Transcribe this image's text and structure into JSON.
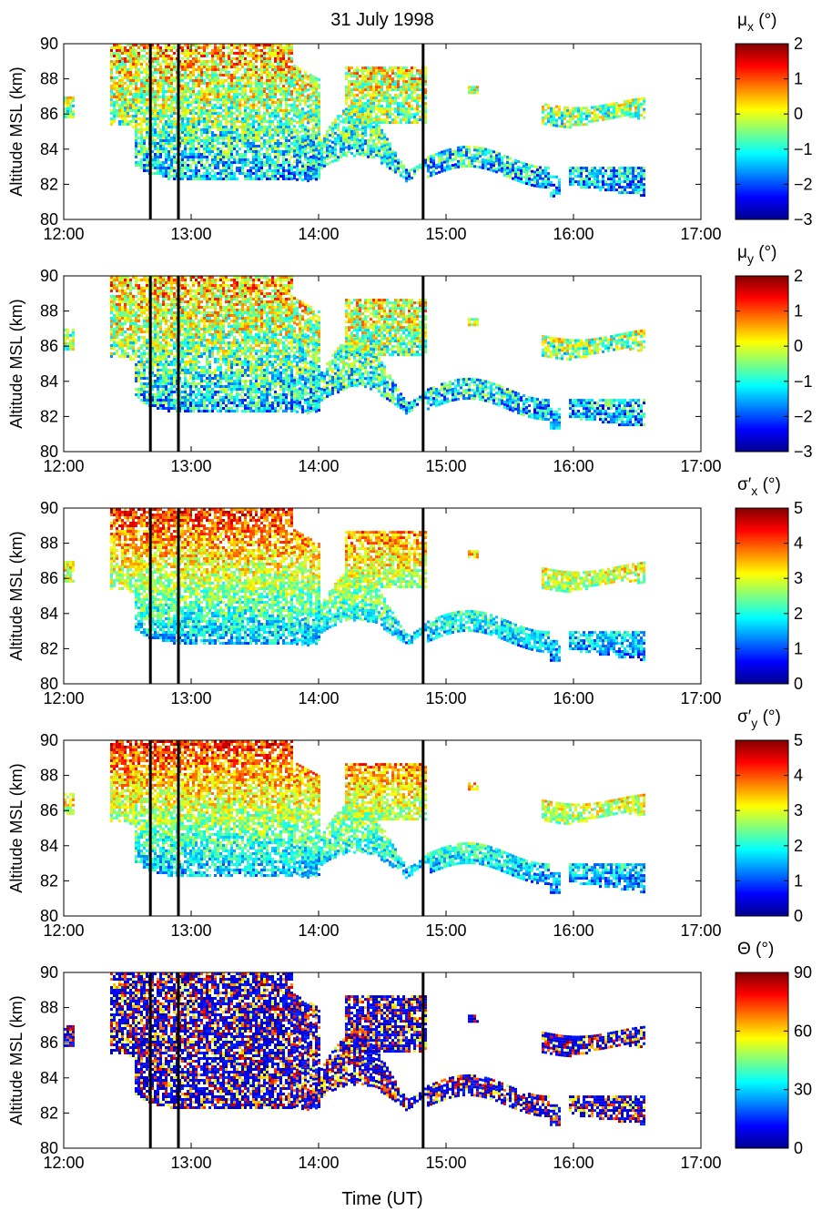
{
  "figure": {
    "title": "31 July 1998",
    "xlabel": "Time (UT)"
  },
  "chart_data": [
    {
      "type": "heatmap",
      "ylabel": "Altitude MSL (km)",
      "colorbar_label_main": "μ",
      "colorbar_label_sub": "x",
      "colorbar_label_unit": " (°)",
      "clim": [
        -3,
        2
      ],
      "colorbar_ticks": [
        "2",
        "1",
        "0",
        "−1",
        "−2",
        "−3"
      ],
      "x_ticks": [
        "12:00",
        "13:00",
        "14:00",
        "15:00",
        "16:00",
        "17:00"
      ],
      "y_ticks": [
        "90",
        "88",
        "86",
        "84",
        "82",
        "80"
      ],
      "xlim_hours": [
        12,
        17
      ],
      "ylim_km": [
        80,
        90
      ],
      "vertical_lines_hours": [
        12.68,
        12.9,
        14.82
      ]
    },
    {
      "type": "heatmap",
      "ylabel": "Altitude MSL (km)",
      "colorbar_label_main": "μ",
      "colorbar_label_sub": "y",
      "colorbar_label_unit": " (°)",
      "clim": [
        -3,
        2
      ],
      "colorbar_ticks": [
        "2",
        "1",
        "0",
        "−1",
        "−2",
        "−3"
      ],
      "x_ticks": [
        "12:00",
        "13:00",
        "14:00",
        "15:00",
        "16:00",
        "17:00"
      ],
      "y_ticks": [
        "90",
        "88",
        "86",
        "84",
        "82",
        "80"
      ],
      "xlim_hours": [
        12,
        17
      ],
      "ylim_km": [
        80,
        90
      ],
      "vertical_lines_hours": [
        12.68,
        12.9,
        14.82
      ]
    },
    {
      "type": "heatmap",
      "ylabel": "Altitude MSL (km)",
      "colorbar_label_main": "σ′",
      "colorbar_label_sub": "x",
      "colorbar_label_unit": " (°)",
      "clim": [
        0,
        5
      ],
      "colorbar_ticks": [
        "5",
        "4",
        "3",
        "2",
        "1",
        "0"
      ],
      "x_ticks": [
        "12:00",
        "13:00",
        "14:00",
        "15:00",
        "16:00",
        "17:00"
      ],
      "y_ticks": [
        "90",
        "88",
        "86",
        "84",
        "82",
        "80"
      ],
      "xlim_hours": [
        12,
        17
      ],
      "ylim_km": [
        80,
        90
      ],
      "vertical_lines_hours": [
        12.68,
        12.9,
        14.82
      ]
    },
    {
      "type": "heatmap",
      "ylabel": "Altitude MSL (km)",
      "colorbar_label_main": "σ′",
      "colorbar_label_sub": "y",
      "colorbar_label_unit": " (°)",
      "clim": [
        0,
        5
      ],
      "colorbar_ticks": [
        "5",
        "4",
        "3",
        "2",
        "1",
        "0"
      ],
      "x_ticks": [
        "12:00",
        "13:00",
        "14:00",
        "15:00",
        "16:00",
        "17:00"
      ],
      "y_ticks": [
        "90",
        "88",
        "86",
        "84",
        "82",
        "80"
      ],
      "xlim_hours": [
        12,
        17
      ],
      "ylim_km": [
        80,
        90
      ],
      "vertical_lines_hours": [
        12.68,
        12.9,
        14.82
      ]
    },
    {
      "type": "heatmap",
      "ylabel": "Altitude MSL (km)",
      "colorbar_label_main": "Θ",
      "colorbar_label_sub": "",
      "colorbar_label_unit": " (°)",
      "clim": [
        0,
        90
      ],
      "colorbar_ticks": [
        "90",
        "60",
        "30",
        "0"
      ],
      "x_ticks": [
        "12:00",
        "13:00",
        "14:00",
        "15:00",
        "16:00",
        "17:00"
      ],
      "y_ticks": [
        "90",
        "88",
        "86",
        "84",
        "82",
        "80"
      ],
      "xlim_hours": [
        12,
        17
      ],
      "ylim_km": [
        80,
        90
      ],
      "vertical_lines_hours": [
        12.68,
        12.9,
        14.82
      ]
    }
  ]
}
